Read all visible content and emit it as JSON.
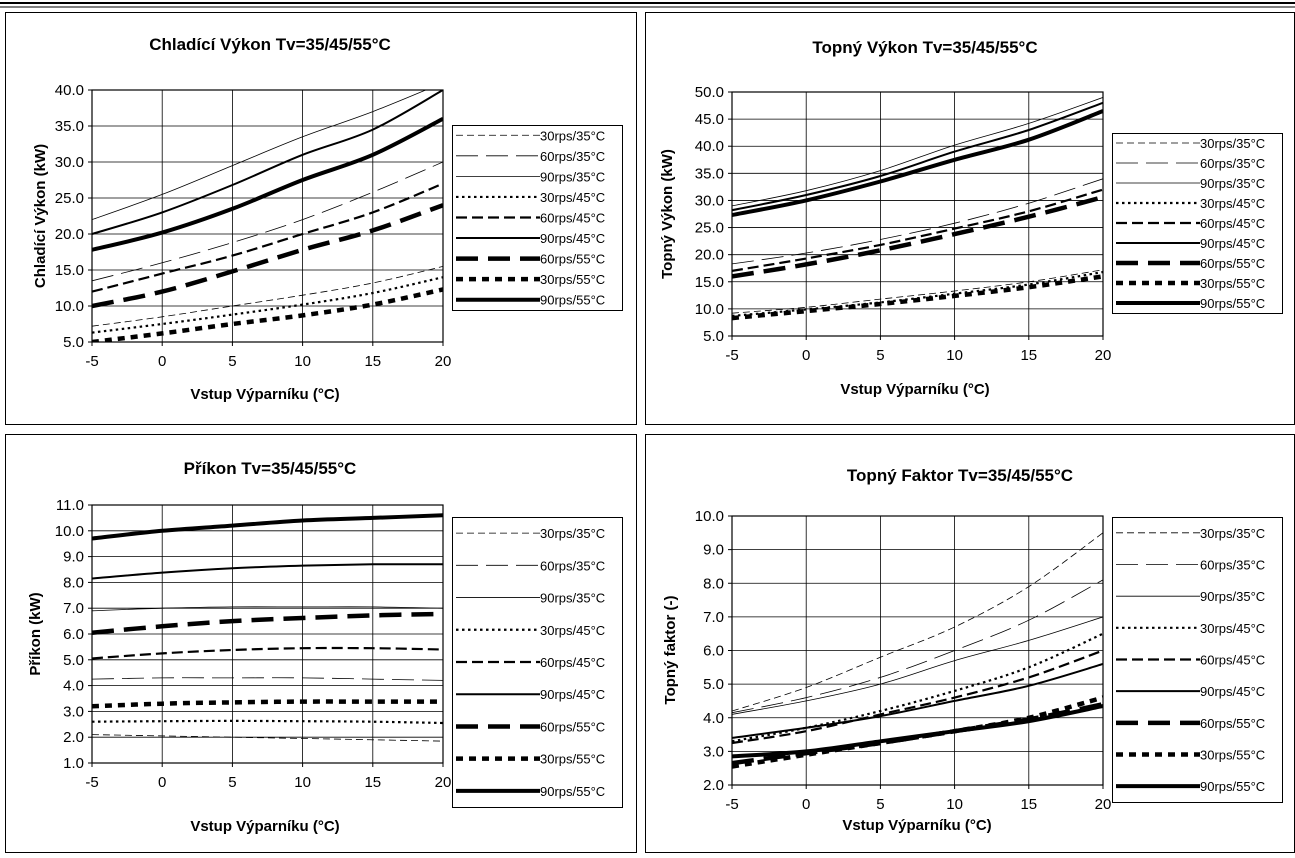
{
  "chart_data": [
    {
      "type": "line",
      "title": "Chladící Výkon Tv=35/45/55°C",
      "xlabel": "Vstup Výparníku (°C)",
      "ylabel": "Chladící Výkon (kW)",
      "x": [
        -5,
        0,
        5,
        10,
        15,
        20
      ],
      "xlim": [
        -5,
        20
      ],
      "ylim": [
        5,
        40
      ],
      "xticks": [
        "-5",
        "0",
        "5",
        "10",
        "15",
        "20"
      ],
      "yticks": [
        "5.0",
        "10.0",
        "15.0",
        "20.0",
        "25.0",
        "30.0",
        "35.0",
        "40.0"
      ],
      "grid": true,
      "legend": "right",
      "series": [
        {
          "name": "30rps/35°C",
          "style": "s30_35",
          "values": [
            7.2,
            8.5,
            10.0,
            11.5,
            13.2,
            15.5
          ]
        },
        {
          "name": "60rps/35°C",
          "style": "s60_35",
          "values": [
            13.5,
            16.0,
            18.8,
            22.0,
            25.8,
            30.0
          ]
        },
        {
          "name": "90rps/35°C",
          "style": "s90_35",
          "values": [
            22.0,
            25.5,
            29.5,
            33.5,
            37.0,
            41.0
          ]
        },
        {
          "name": "30rps/45°C",
          "style": "s30_45",
          "values": [
            6.3,
            7.5,
            8.8,
            10.2,
            11.8,
            14.0
          ]
        },
        {
          "name": "60rps/45°C",
          "style": "s60_45",
          "values": [
            12.0,
            14.5,
            17.0,
            20.0,
            23.0,
            27.0
          ]
        },
        {
          "name": "90rps/45°C",
          "style": "s90_45",
          "values": [
            20.0,
            23.0,
            26.8,
            31.0,
            34.5,
            40.0
          ]
        },
        {
          "name": "60rps/55°C",
          "style": "s60_55",
          "values": [
            10.0,
            12.0,
            14.8,
            17.8,
            20.5,
            24.0
          ]
        },
        {
          "name": "30rps/55°C",
          "style": "s30_55",
          "values": [
            5.0,
            6.2,
            7.5,
            8.7,
            10.2,
            12.3
          ]
        },
        {
          "name": "90rps/55°C",
          "style": "s90_55",
          "values": [
            17.8,
            20.2,
            23.5,
            27.5,
            31.0,
            36.0
          ]
        }
      ]
    },
    {
      "type": "line",
      "title": "Topný Výkon Tv=35/45/55°C",
      "xlabel": "Vstup Výparníku (°C)",
      "ylabel": "Topný Výkon (kW)",
      "x": [
        -5,
        0,
        5,
        10,
        15,
        20
      ],
      "xlim": [
        -5,
        20
      ],
      "ylim": [
        5,
        50
      ],
      "xticks": [
        "-5",
        "0",
        "5",
        "10",
        "15",
        "20"
      ],
      "yticks": [
        "5.0",
        "10.0",
        "15.0",
        "20.0",
        "25.0",
        "30.0",
        "35.0",
        "40.0",
        "45.0",
        "50.0"
      ],
      "grid": true,
      "legend": "right",
      "series": [
        {
          "name": "30rps/35°C",
          "style": "s30_35",
          "values": [
            9.2,
            10.3,
            11.8,
            13.3,
            15.0,
            17.2
          ]
        },
        {
          "name": "60rps/35°C",
          "style": "s60_35",
          "values": [
            18.3,
            20.3,
            22.8,
            25.8,
            29.5,
            34.0
          ]
        },
        {
          "name": "90rps/35°C",
          "style": "s90_35",
          "values": [
            29.0,
            31.8,
            35.5,
            40.2,
            44.2,
            49.0
          ]
        },
        {
          "name": "30rps/45°C",
          "style": "s30_45",
          "values": [
            8.7,
            9.9,
            11.2,
            12.8,
            14.5,
            16.8
          ]
        },
        {
          "name": "60rps/45°C",
          "style": "s60_45",
          "values": [
            17.0,
            19.3,
            21.8,
            24.8,
            28.0,
            32.0
          ]
        },
        {
          "name": "90rps/45°C",
          "style": "s90_45",
          "values": [
            28.2,
            31.0,
            34.5,
            39.0,
            43.0,
            48.0
          ]
        },
        {
          "name": "60rps/55°C",
          "style": "s60_55",
          "values": [
            16.0,
            18.2,
            20.8,
            23.8,
            27.0,
            30.6
          ]
        },
        {
          "name": "30rps/55°C",
          "style": "s30_55",
          "values": [
            8.3,
            9.6,
            10.9,
            12.4,
            14.0,
            16.0
          ]
        },
        {
          "name": "90rps/55°C",
          "style": "s90_55",
          "values": [
            27.3,
            30.0,
            33.5,
            37.5,
            41.2,
            46.5
          ]
        }
      ]
    },
    {
      "type": "line",
      "title": "Příkon Tv=35/45/55°C",
      "xlabel": "Vstup Výparníku (°C)",
      "ylabel": "Příkon (kW)",
      "x": [
        -5,
        0,
        5,
        10,
        15,
        20
      ],
      "xlim": [
        -5,
        20
      ],
      "ylim": [
        1,
        11
      ],
      "xticks": [
        "-5",
        "0",
        "5",
        "10",
        "15",
        "20"
      ],
      "yticks": [
        "1.0",
        "2.0",
        "3.0",
        "4.0",
        "5.0",
        "6.0",
        "7.0",
        "8.0",
        "9.0",
        "10.0",
        "11.0"
      ],
      "grid": true,
      "legend": "right",
      "series": [
        {
          "name": "30rps/35°C",
          "style": "s30_35",
          "values": [
            2.1,
            2.05,
            2.0,
            1.95,
            1.9,
            1.85
          ]
        },
        {
          "name": "60rps/35°C",
          "style": "s60_35",
          "values": [
            4.25,
            4.3,
            4.3,
            4.3,
            4.25,
            4.2
          ]
        },
        {
          "name": "90rps/35°C",
          "style": "s90_35",
          "values": [
            6.9,
            7.0,
            7.05,
            7.05,
            7.05,
            7.0
          ]
        },
        {
          "name": "30rps/45°C",
          "style": "s30_45",
          "values": [
            2.6,
            2.62,
            2.63,
            2.62,
            2.6,
            2.55
          ]
        },
        {
          "name": "60rps/45°C",
          "style": "s60_45",
          "values": [
            5.05,
            5.25,
            5.38,
            5.45,
            5.45,
            5.4
          ]
        },
        {
          "name": "90rps/45°C",
          "style": "s90_45",
          "values": [
            8.15,
            8.38,
            8.55,
            8.65,
            8.7,
            8.7
          ]
        },
        {
          "name": "60rps/55°C",
          "style": "s60_55",
          "values": [
            6.05,
            6.3,
            6.5,
            6.62,
            6.72,
            6.78
          ]
        },
        {
          "name": "30rps/55°C",
          "style": "s30_55",
          "values": [
            3.2,
            3.3,
            3.35,
            3.38,
            3.38,
            3.38
          ]
        },
        {
          "name": "90rps/55°C",
          "style": "s90_55",
          "values": [
            9.7,
            10.0,
            10.2,
            10.4,
            10.5,
            10.6
          ]
        }
      ]
    },
    {
      "type": "line",
      "title": "Topný Faktor  Tv=35/45/55°C",
      "xlabel": "Vstup Výparníku (°C)",
      "ylabel": "Topný faktor (-)",
      "x": [
        -5,
        0,
        5,
        10,
        15,
        20
      ],
      "xlim": [
        -5,
        20
      ],
      "ylim": [
        2,
        10
      ],
      "xticks": [
        "-5",
        "0",
        "5",
        "10",
        "15",
        "20"
      ],
      "yticks": [
        "2.0",
        "3.0",
        "4.0",
        "5.0",
        "6.0",
        "7.0",
        "8.0",
        "9.0",
        "10.0"
      ],
      "grid": true,
      "legend": "right",
      "series": [
        {
          "name": "30rps/35°C",
          "style": "s30_35",
          "values": [
            4.2,
            4.9,
            5.8,
            6.7,
            7.9,
            9.5
          ]
        },
        {
          "name": "60rps/35°C",
          "style": "s60_35",
          "values": [
            4.15,
            4.6,
            5.2,
            6.0,
            6.9,
            8.1
          ]
        },
        {
          "name": "90rps/35°C",
          "style": "s90_35",
          "values": [
            4.1,
            4.5,
            5.0,
            5.7,
            6.3,
            7.0
          ]
        },
        {
          "name": "30rps/45°C",
          "style": "s30_45",
          "values": [
            3.3,
            3.7,
            4.2,
            4.8,
            5.5,
            6.5
          ]
        },
        {
          "name": "60rps/45°C",
          "style": "s60_45",
          "values": [
            3.25,
            3.6,
            4.1,
            4.6,
            5.2,
            6.0
          ]
        },
        {
          "name": "90rps/45°C",
          "style": "s90_45",
          "values": [
            3.4,
            3.7,
            4.05,
            4.5,
            4.95,
            5.6
          ]
        },
        {
          "name": "60rps/55°C",
          "style": "s60_55",
          "values": [
            2.65,
            2.95,
            3.25,
            3.6,
            3.95,
            4.4
          ]
        },
        {
          "name": "30rps/55°C",
          "style": "s30_55",
          "values": [
            2.55,
            2.9,
            3.25,
            3.6,
            4.0,
            4.6
          ]
        },
        {
          "name": "90rps/55°C",
          "style": "s90_55",
          "values": [
            2.85,
            3.0,
            3.3,
            3.6,
            3.9,
            4.35
          ]
        }
      ]
    }
  ]
}
